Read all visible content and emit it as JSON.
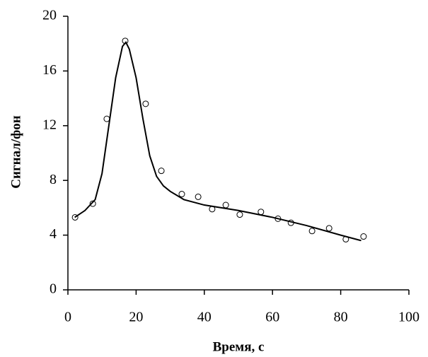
{
  "chart_data": {
    "type": "scatter",
    "xlabel": "Время, с",
    "ylabel": "Сигнал/фон",
    "xlim": [
      0,
      100
    ],
    "xticks": [
      0,
      20,
      40,
      60,
      80,
      100
    ],
    "ylim": [
      0,
      20
    ],
    "yticks": [
      0,
      4,
      8,
      12,
      16,
      20
    ],
    "series": [
      {
        "mode": "markers",
        "color": "#000000",
        "x": [
          2.1,
          7.3,
          11.4,
          16.8,
          22.8,
          27.4,
          33.4,
          38.2,
          42.3,
          46.3,
          50.4,
          56.6,
          61.6,
          65.4,
          71.6,
          76.6,
          81.5,
          86.7
        ],
        "values": [
          5.3,
          6.3,
          12.5,
          18.2,
          13.6,
          8.7,
          7.0,
          6.8,
          5.9,
          6.2,
          5.5,
          5.7,
          5.2,
          4.9,
          4.3,
          4.5,
          3.7,
          3.9
        ]
      },
      {
        "mode": "line",
        "color": "#000000",
        "x": [
          2,
          5,
          8,
          10,
          12,
          14,
          16,
          17,
          18,
          20,
          22,
          24,
          26,
          28,
          30,
          34,
          40,
          50,
          60,
          70,
          80,
          86
        ],
        "values": [
          5.3,
          5.8,
          6.6,
          8.5,
          12,
          15.5,
          17.8,
          18.1,
          17.6,
          15.5,
          12.5,
          9.8,
          8.3,
          7.6,
          7.2,
          6.6,
          6.2,
          5.8,
          5.3,
          4.7,
          4.0,
          3.6
        ]
      }
    ]
  }
}
